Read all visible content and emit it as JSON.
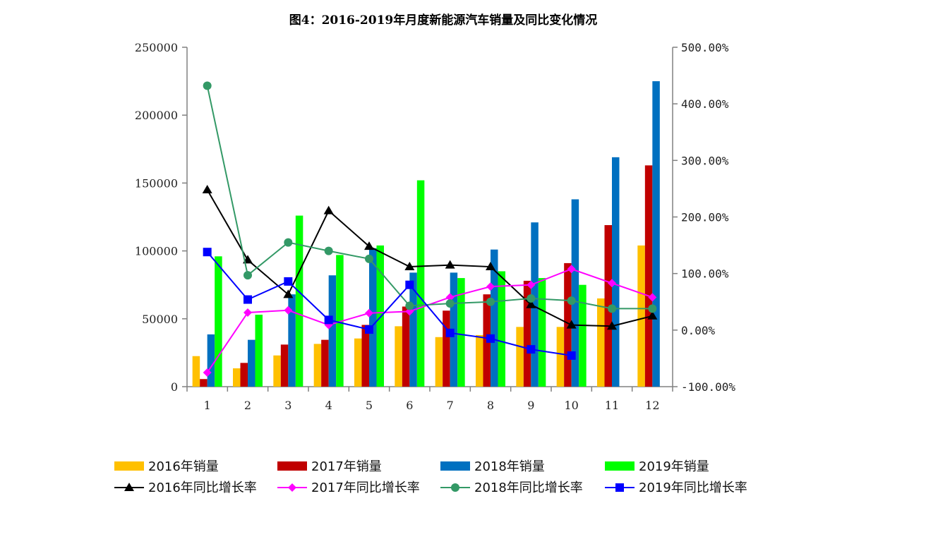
{
  "chart_data": {
    "type": "bar+line",
    "title": "图4：2016-2019年月度新能源汽车销量及同比变化情况",
    "categories": [
      "1",
      "2",
      "3",
      "4",
      "5",
      "6",
      "7",
      "8",
      "9",
      "10",
      "11",
      "12"
    ],
    "y_left": {
      "min": 0,
      "max": 250000,
      "ticks": [
        "0",
        "50000",
        "100000",
        "150000",
        "200000",
        "250000"
      ]
    },
    "y_right": {
      "min": -100,
      "max": 500,
      "ticks": [
        "-100.00%",
        "0.00%",
        "100.00%",
        "200.00%",
        "300.00%",
        "400.00%",
        "500.00%"
      ]
    },
    "bar_series": [
      {
        "name": "2016年销量",
        "color": "#FFC000",
        "values": [
          22500,
          13500,
          23000,
          31500,
          35500,
          44500,
          36500,
          38000,
          44000,
          44000,
          65000,
          104000
        ]
      },
      {
        "name": "2017年销量",
        "color": "#C00000",
        "values": [
          5600,
          17500,
          31000,
          34500,
          45500,
          59000,
          56000,
          68000,
          78000,
          91000,
          119000,
          163000
        ]
      },
      {
        "name": "2018年销量",
        "color": "#0070C0",
        "values": [
          38500,
          34500,
          68000,
          82000,
          102000,
          84000,
          84000,
          101000,
          121000,
          138000,
          169000,
          225000
        ]
      },
      {
        "name": "2019年销量",
        "color": "#00FF00",
        "values": [
          96000,
          53000,
          126000,
          97000,
          104000,
          152000,
          80000,
          85000,
          80000,
          75000,
          null,
          null
        ]
      }
    ],
    "line_series": [
      {
        "name": "2016年同比增长率",
        "color": "#000000",
        "marker": "triangle",
        "values": [
          248,
          124,
          63,
          211,
          148,
          112,
          115,
          112,
          45,
          9,
          7,
          25
        ]
      },
      {
        "name": "2017年同比增长率",
        "color": "#FF00FF",
        "marker": "diamond",
        "values": [
          -75,
          31,
          35,
          9,
          30,
          33,
          58,
          77,
          80,
          108,
          83,
          58
        ]
      },
      {
        "name": "2018年同比增长率",
        "color": "#339966",
        "marker": "circle",
        "values": [
          432,
          97,
          155,
          140,
          126,
          43,
          47,
          50,
          56,
          52,
          38,
          38
        ]
      },
      {
        "name": "2019年同比增长率",
        "color": "#0000FF",
        "marker": "square",
        "values": [
          138,
          54,
          86,
          18,
          1,
          80,
          -5,
          -15,
          -34,
          -45,
          null,
          null
        ]
      }
    ]
  }
}
